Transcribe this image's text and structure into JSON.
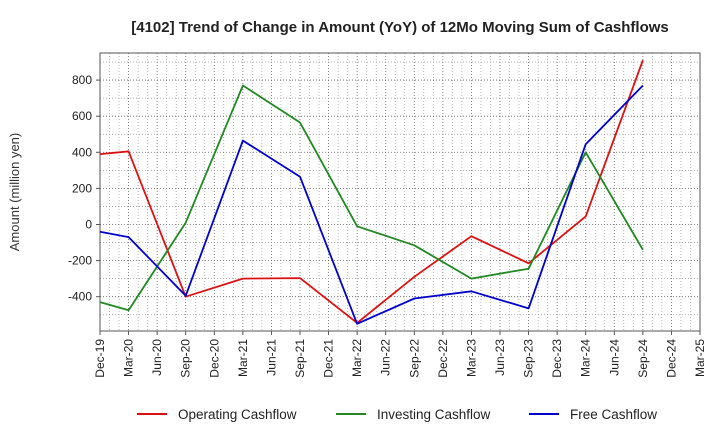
{
  "chart_data": {
    "type": "line",
    "title": "[4102]  Trend of Change in Amount (YoY) of 12Mo Moving Sum of Cashflows",
    "xlabel": "",
    "ylabel": "Amount (million yen)",
    "ylim": [
      -590,
      950
    ],
    "yticks": [
      -400,
      -200,
      0,
      200,
      400,
      600,
      800
    ],
    "grid": true,
    "legend_position": "bottom",
    "categories": [
      "Dec-19",
      "Mar-20",
      "Jun-20",
      "Sep-20",
      "Dec-20",
      "Mar-21",
      "Jun-21",
      "Sep-21",
      "Dec-21",
      "Mar-22",
      "Jun-22",
      "Sep-22",
      "Dec-22",
      "Mar-23",
      "Jun-23",
      "Sep-23",
      "Dec-23",
      "Mar-24",
      "Jun-24",
      "Sep-24",
      "Dec-24",
      "Mar-25"
    ],
    "series": [
      {
        "name": "Operating Cashflow",
        "color": "#dd1111",
        "values": [
          390,
          405,
          null,
          -400,
          null,
          -300,
          null,
          -297,
          null,
          -545,
          null,
          -290,
          null,
          -65,
          null,
          -215,
          null,
          45,
          null,
          910,
          null,
          null
        ]
      },
      {
        "name": "Investing Cashflow",
        "color": "#228822",
        "values": [
          -430,
          -475,
          null,
          10,
          null,
          770,
          null,
          565,
          null,
          -10,
          null,
          -115,
          null,
          -300,
          null,
          -245,
          null,
          400,
          null,
          -140,
          null,
          null
        ]
      },
      {
        "name": "Free Cashflow",
        "color": "#0000cc",
        "values": [
          -40,
          -70,
          null,
          -395,
          null,
          465,
          null,
          265,
          null,
          -550,
          null,
          -410,
          null,
          -370,
          null,
          -465,
          null,
          445,
          null,
          770,
          null,
          null
        ]
      }
    ]
  }
}
